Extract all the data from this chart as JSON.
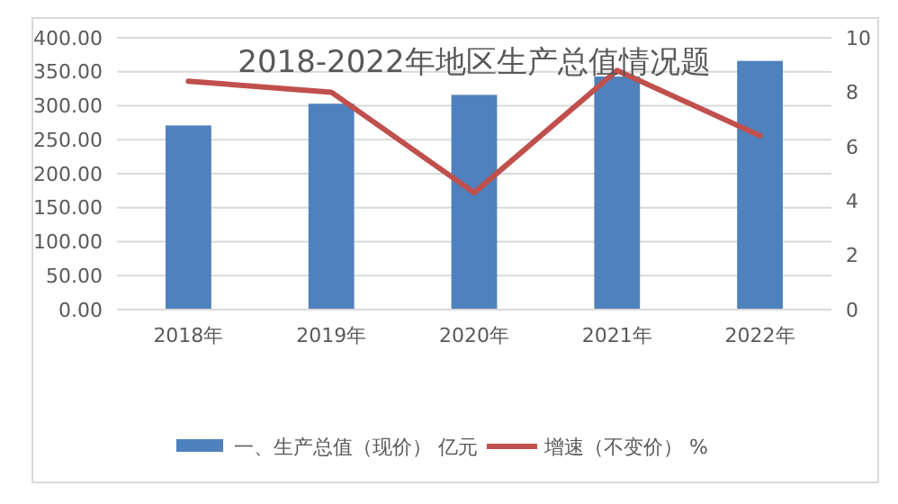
{
  "chart_data": {
    "type": "bar",
    "title": "2018-2022年地区生产总值情况题",
    "categories": [
      "2018年",
      "2019年",
      "2020年",
      "2021年",
      "2022年"
    ],
    "series": [
      {
        "name": "一、生产总值（现价） 亿元",
        "color": "#4f81bd",
        "values": [
          271,
          303,
          316,
          343,
          366
        ]
      },
      {
        "name": "增速（不变价） %",
        "type": "line",
        "axis": "y2",
        "color": "#c0504d",
        "values": [
          8.4,
          8.0,
          4.3,
          8.8,
          6.4
        ]
      }
    ],
    "ylim": [
      0,
      400
    ],
    "yticks": [
      {
        "value": 0,
        "label": "0.00"
      },
      {
        "value": 50,
        "label": "50.00"
      },
      {
        "value": 100,
        "label": "100.00"
      },
      {
        "value": 150,
        "label": "150.00"
      },
      {
        "value": 200,
        "label": "200.00"
      },
      {
        "value": 250,
        "label": "250.00"
      },
      {
        "value": 300,
        "label": "300.00"
      },
      {
        "value": 350,
        "label": "350.00"
      },
      {
        "value": 400,
        "label": "400.00"
      }
    ],
    "y2lim": [
      0,
      10
    ],
    "y2ticks": [
      0,
      2,
      4,
      6,
      8,
      10
    ],
    "grid": "y",
    "legend": "bottom",
    "marker": "none",
    "line_style": "solid"
  }
}
